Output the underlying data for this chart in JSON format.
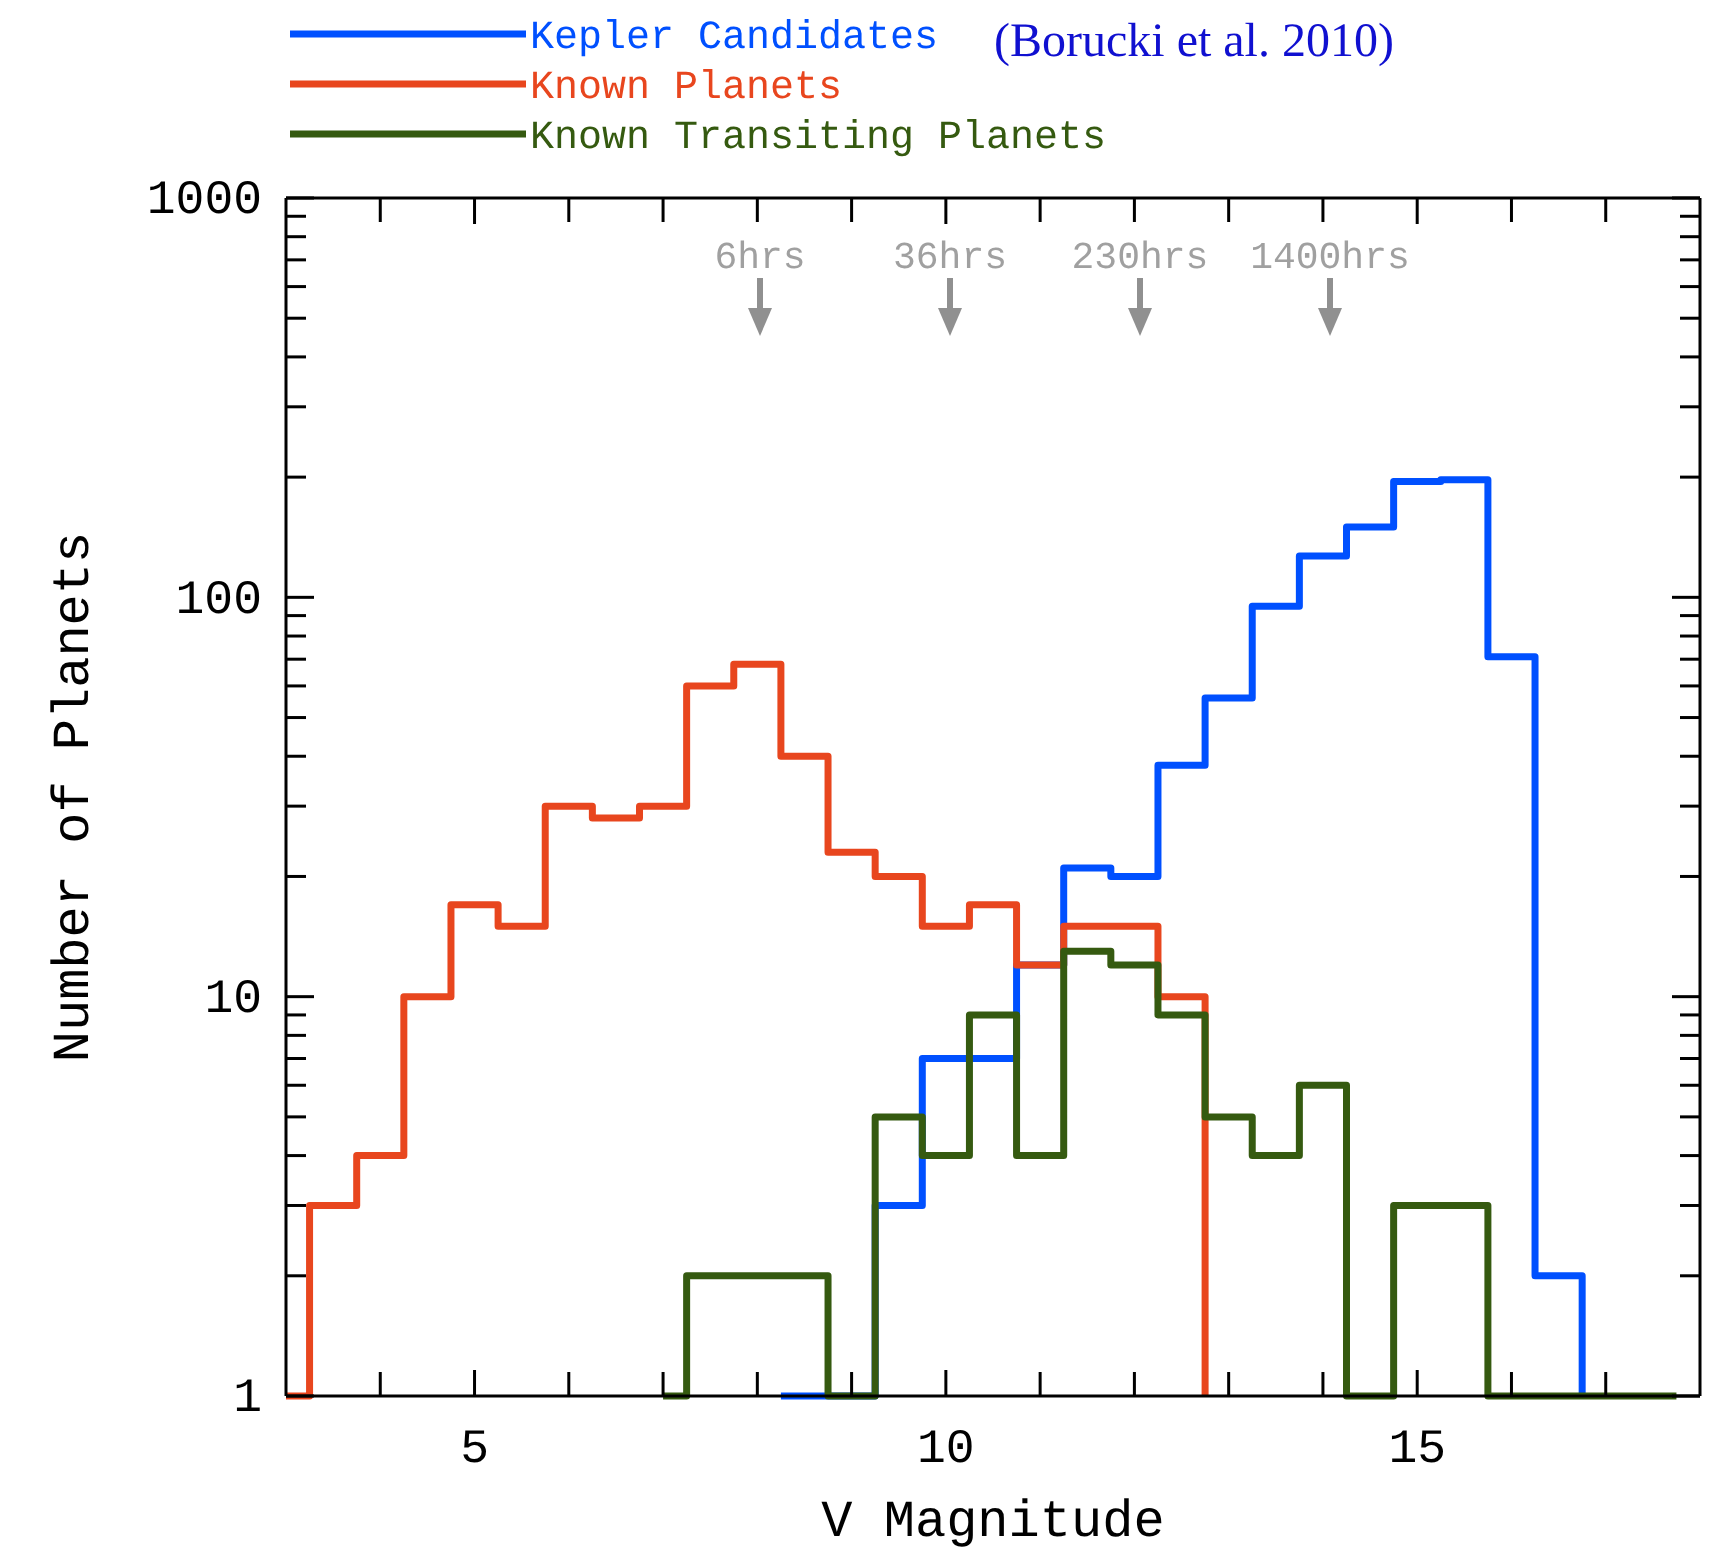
{
  "chart_data": {
    "type": "step",
    "xlabel": "V Magnitude",
    "ylabel": "Number of Planets",
    "xlim": [
      3,
      18
    ],
    "ylim": [
      1,
      1000
    ],
    "log": "y",
    "grid": false,
    "legend": "top",
    "marker": "none",
    "xticks": [
      {
        "value": 4,
        "label": null
      },
      5,
      {
        "value": 6,
        "label": null
      },
      {
        "value": 7,
        "label": null
      },
      {
        "value": 8,
        "label": null
      },
      {
        "value": 9,
        "label": null
      },
      10,
      {
        "value": 11,
        "label": null
      },
      {
        "value": 12,
        "label": null
      },
      {
        "value": 13,
        "label": null
      },
      {
        "value": 14,
        "label": null
      },
      15,
      {
        "value": 16,
        "label": null
      },
      {
        "value": 17,
        "label": null
      }
    ],
    "yticks": [
      1,
      {
        "value": 2,
        "label": null
      },
      {
        "value": 3,
        "label": null
      },
      {
        "value": 4,
        "label": null
      },
      {
        "value": 5,
        "label": null
      },
      {
        "value": 6,
        "label": null
      },
      {
        "value": 7,
        "label": null
      },
      {
        "value": 8,
        "label": null
      },
      {
        "value": 9,
        "label": null
      },
      10,
      {
        "value": 20,
        "label": null
      },
      {
        "value": 30,
        "label": null
      },
      {
        "value": 40,
        "label": null
      },
      {
        "value": 50,
        "label": null
      },
      {
        "value": 60,
        "label": null
      },
      {
        "value": 70,
        "label": null
      },
      {
        "value": 80,
        "label": null
      },
      {
        "value": 90,
        "label": null
      },
      100,
      {
        "value": 200,
        "label": null
      },
      {
        "value": 300,
        "label": null
      },
      {
        "value": 400,
        "label": null
      },
      {
        "value": 500,
        "label": null
      },
      {
        "value": 600,
        "label": null
      },
      {
        "value": 700,
        "label": null
      },
      {
        "value": 800,
        "label": null
      },
      {
        "value": 900,
        "label": null
      },
      1000
    ],
    "series": [
      {
        "name": "Kepler Candidates",
        "color": "#0050ff",
        "x": [
          8.25,
          8.75,
          9.25,
          9.75,
          10.25,
          10.75,
          11.25,
          11.75,
          12.25,
          12.75,
          13.25,
          13.75,
          14.25,
          14.75,
          15.25,
          15.75,
          16.25,
          16.75
        ],
        "values": [
          1,
          1,
          3,
          7,
          7,
          12,
          21,
          20,
          38,
          56,
          95,
          127,
          150,
          195,
          197,
          71,
          2,
          1
        ]
      },
      {
        "name": "Known Planets",
        "color": "#e8461e",
        "x": [
          3,
          3.25,
          3.75,
          4.25,
          4.75,
          5.25,
          5.75,
          6.25,
          6.75,
          7.25,
          7.75,
          8.25,
          8.75,
          9.25,
          9.75,
          10.25,
          10.75,
          11.25,
          11.75,
          12.25,
          12.75
        ],
        "values": [
          1,
          3,
          4,
          10,
          17,
          15,
          30,
          28,
          30,
          60,
          68,
          40,
          23,
          20,
          15,
          17,
          12,
          15,
          15,
          10,
          1
        ]
      },
      {
        "name": "Known Transiting Planets",
        "color": "#355a10",
        "x": [
          7,
          7.25,
          7.75,
          8.25,
          8.75,
          9.25,
          9.75,
          10.25,
          10.75,
          11.25,
          11.75,
          12.25,
          12.75,
          13.25,
          13.75,
          14.25,
          14.75,
          15.25,
          15.75,
          16.25,
          16.75,
          17.25,
          17.75
        ],
        "values": [
          1,
          2,
          2,
          2,
          1,
          5,
          4,
          9,
          4,
          13,
          12,
          9,
          5,
          4,
          6,
          1,
          3,
          3,
          1,
          1,
          1,
          1,
          1
        ]
      }
    ],
    "annotations": [
      "(Borucki et al. 2010)",
      "6hrs",
      "36hrs",
      "230hrs",
      "1400hrs"
    ]
  }
}
